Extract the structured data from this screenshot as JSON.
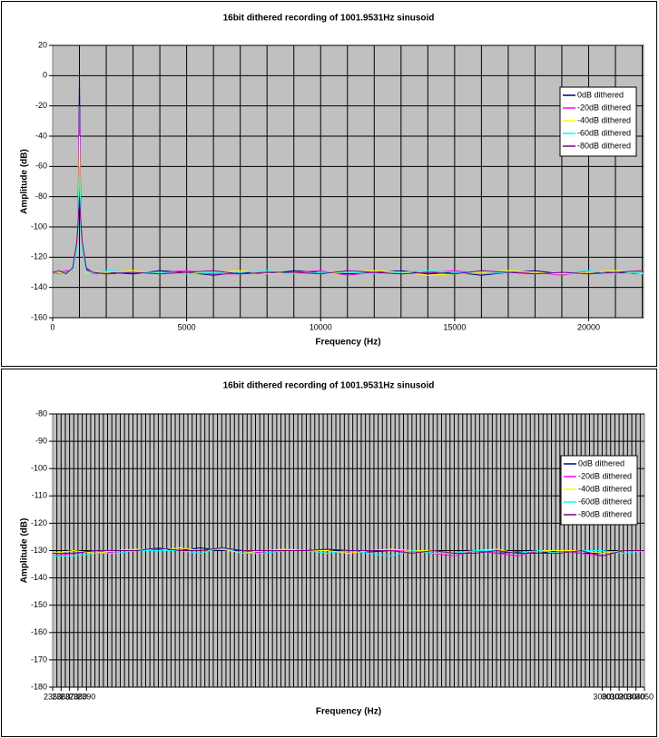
{
  "chart_data": [
    {
      "type": "line",
      "title": "16bit dithered recording of 1001.9531Hz sinusoid",
      "x_label": "Frequency (Hz)",
      "y_label": "Amplitude (dB)",
      "xlim": [
        0,
        22050
      ],
      "xticks": [
        0,
        5000,
        10000,
        15000,
        20000
      ],
      "xgrid": [
        1000,
        2000,
        3000,
        4000,
        5000,
        6000,
        7000,
        8000,
        9000,
        10000,
        11000,
        12000,
        13000,
        14000,
        15000,
        16000,
        17000,
        18000,
        19000,
        20000,
        21000,
        22000
      ],
      "ylim": [
        -160,
        20
      ],
      "yticks": [
        -160,
        -140,
        -120,
        -100,
        -80,
        -60,
        -40,
        -20,
        0,
        20
      ],
      "grid": true,
      "legend": "right",
      "x": [
        0,
        250,
        500,
        750,
        900,
        950,
        1000,
        1050,
        1100,
        1250,
        1500,
        2000,
        3000,
        4000,
        5000,
        6000,
        7000,
        8000,
        9000,
        10000,
        11000,
        12000,
        13000,
        14000,
        15000,
        16000,
        17000,
        18000,
        19000,
        20000,
        21000,
        22000,
        22050
      ],
      "series": [
        {
          "name": "0dB dithered",
          "color": "#000080",
          "values": [
            -130,
            -131,
            -130,
            -128,
            -112,
            -98,
            0,
            -97,
            -111,
            -128,
            -131,
            -130,
            -131,
            -129,
            -130,
            -132,
            -130,
            -131,
            -129,
            -130,
            -131,
            -130,
            -129,
            -131,
            -130,
            -132,
            -130,
            -129,
            -131,
            -130,
            -130,
            -131,
            -130
          ]
        },
        {
          "name": "-20dB dithered",
          "color": "#ff00ff",
          "values": [
            -131,
            -130,
            -129,
            -129,
            -113,
            -99,
            -20,
            -98,
            -112,
            -129,
            -130,
            -131,
            -130,
            -130,
            -129,
            -131,
            -131,
            -130,
            -130,
            -129,
            -132,
            -130,
            -131,
            -130,
            -129,
            -131,
            -130,
            -130,
            -132,
            -129,
            -131,
            -130,
            -131
          ]
        },
        {
          "name": "-40dB dithered",
          "color": "#ffff00",
          "values": [
            -130,
            -130,
            -131,
            -128,
            -114,
            -100,
            -40,
            -99,
            -113,
            -130,
            -130,
            -130,
            -129,
            -131,
            -130,
            -130,
            -129,
            -131,
            -130,
            -131,
            -130,
            -129,
            -130,
            -132,
            -131,
            -130,
            -129,
            -130,
            -131,
            -130,
            -129,
            -131,
            -130
          ]
        },
        {
          "name": "-60dB dithered",
          "color": "#00ffff",
          "values": [
            -131,
            -131,
            -130,
            -129,
            -115,
            -101,
            -60,
            -100,
            -114,
            -129,
            -131,
            -129,
            -130,
            -130,
            -131,
            -130,
            -130,
            -129,
            -131,
            -130,
            -130,
            -131,
            -130,
            -129,
            -130,
            -131,
            -130,
            -131,
            -130,
            -129,
            -131,
            -130,
            -131
          ]
        },
        {
          "name": "-80dB dithered",
          "color": "#800080",
          "values": [
            -130,
            -129,
            -131,
            -127,
            -110,
            -97,
            -80,
            -96,
            -109,
            -127,
            -130,
            -131,
            -130,
            -131,
            -130,
            -129,
            -131,
            -130,
            -130,
            -131,
            -129,
            -130,
            -131,
            -130,
            -131,
            -129,
            -130,
            -131,
            -130,
            -131,
            -130,
            -129,
            -130
          ]
        }
      ]
    },
    {
      "type": "line",
      "title": "16bit dithered recording of 1001.9531Hz sinusoid",
      "x_label": "Frequency (Hz)",
      "y_label": "Amplitude (dB)",
      "xlim": [
        2350,
        3050
      ],
      "xticks": [
        2350,
        2360,
        2370,
        2380,
        2390,
        3000,
        3010,
        3020,
        3030,
        3040,
        3050
      ],
      "xgrid": [
        2355,
        2360,
        2365,
        2370,
        2375,
        2380,
        2385,
        2390,
        2395,
        2400,
        2405,
        2410,
        2415,
        2420,
        2425,
        2430,
        2435,
        2440,
        2445,
        2450,
        2455,
        2460,
        2465,
        2470,
        2475,
        2480,
        2485,
        2490,
        2495,
        2500,
        2505,
        2510,
        2515,
        2520,
        2525,
        2530,
        2535,
        2540,
        2545,
        2550,
        2555,
        2560,
        2565,
        2570,
        2575,
        2580,
        2585,
        2590,
        2595,
        2600,
        2605,
        2610,
        2615,
        2620,
        2625,
        2630,
        2635,
        2640,
        2645,
        2650,
        2655,
        2660,
        2665,
        2670,
        2675,
        2680,
        2685,
        2690,
        2695,
        2700,
        2705,
        2710,
        2715,
        2720,
        2725,
        2730,
        2735,
        2740,
        2745,
        2750,
        2755,
        2760,
        2765,
        2770,
        2775,
        2780,
        2785,
        2790,
        2795,
        2800,
        2805,
        2810,
        2815,
        2820,
        2825,
        2830,
        2835,
        2840,
        2845,
        2850,
        2855,
        2860,
        2865,
        2870,
        2875,
        2880,
        2885,
        2890,
        2895,
        2900,
        2905,
        2910,
        2915,
        2920,
        2925,
        2930,
        2935,
        2940,
        2945,
        2950,
        2955,
        2960,
        2965,
        2970,
        2975,
        2980,
        2985,
        2990,
        2995,
        3000,
        3005,
        3010,
        3015,
        3020,
        3025,
        3030,
        3035,
        3040,
        3045
      ],
      "ylim": [
        -180,
        -80
      ],
      "yticks": [
        -180,
        -170,
        -160,
        -150,
        -140,
        -130,
        -120,
        -110,
        -100,
        -90,
        -80
      ],
      "grid": true,
      "legend": "right",
      "x": [
        2350,
        2375,
        2400,
        2425,
        2450,
        2475,
        2500,
        2525,
        2550,
        2575,
        2600,
        2625,
        2650,
        2675,
        2700,
        2725,
        2750,
        2775,
        2800,
        2825,
        2850,
        2875,
        2900,
        2925,
        2950,
        2975,
        3000,
        3025,
        3050
      ],
      "series": [
        {
          "name": "0dB dithered",
          "color": "#000080",
          "values": [
            -131,
            -131,
            -130,
            -130,
            -130,
            -129.5,
            -130,
            -129,
            -130,
            -130,
            -131,
            -130,
            -130,
            -129.5,
            -130,
            -130.5,
            -130,
            -130,
            -131,
            -131,
            -130,
            -131,
            -130.5,
            -131,
            -130,
            -131,
            -131,
            -130,
            -130
          ]
        },
        {
          "name": "-20dB dithered",
          "color": "#ff00ff",
          "values": [
            -132,
            -131,
            -130,
            -131,
            -130,
            -130,
            -129,
            -130,
            -129,
            -130,
            -131,
            -130,
            -130,
            -130,
            -131,
            -130,
            -130,
            -130,
            -131,
            -132,
            -130,
            -131,
            -132,
            -130,
            -130,
            -131,
            -132,
            -130,
            -130
          ]
        },
        {
          "name": "-40dB dithered",
          "color": "#ffff00",
          "values": [
            -131,
            -130,
            -131,
            -130,
            -129.5,
            -130,
            -129,
            -130,
            -129.5,
            -131,
            -130,
            -129.5,
            -130,
            -130,
            -131,
            -130,
            -129.5,
            -130,
            -130,
            -131,
            -130,
            -129.5,
            -131,
            -130,
            -130,
            -130,
            -131,
            -130,
            -130
          ]
        },
        {
          "name": "-60dB dithered",
          "color": "#00ffff",
          "values": [
            -132,
            -132,
            -131,
            -131,
            -130,
            -130,
            -130,
            -131,
            -129,
            -131,
            -131,
            -130,
            -130,
            -131,
            -130,
            -131,
            -132,
            -130,
            -131,
            -131,
            -130,
            -130,
            -131,
            -130,
            -131,
            -130,
            -130,
            -131,
            -130
          ]
        },
        {
          "name": "-80dB dithered",
          "color": "#800080",
          "values": [
            -131,
            -131,
            -130,
            -130,
            -130,
            -129,
            -130,
            -130,
            -129,
            -130,
            -130,
            -130,
            -130,
            -129.5,
            -130,
            -130,
            -130,
            -131,
            -130,
            -131,
            -131,
            -130,
            -131,
            -131,
            -131,
            -130,
            -132,
            -130,
            -130
          ]
        }
      ]
    }
  ]
}
